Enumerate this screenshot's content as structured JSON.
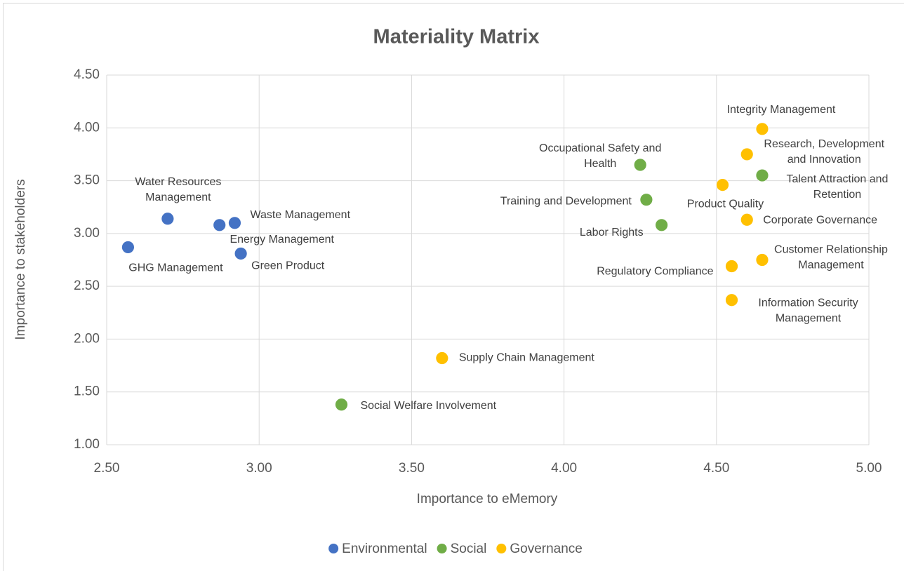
{
  "chart_data": {
    "type": "scatter",
    "title": "Materiality Matrix",
    "x_label": "Importance to eMemory",
    "y_label": "Importance to stakeholders",
    "xlim": [
      2.5,
      5.0
    ],
    "ylim": [
      1.0,
      4.5
    ],
    "xticks": [
      {
        "value": 2.5,
        "label": "2.50"
      },
      {
        "value": 3.0,
        "label": "3.00"
      },
      {
        "value": 3.5,
        "label": "3.50"
      },
      {
        "value": 4.0,
        "label": "4.00"
      },
      {
        "value": 4.5,
        "label": "4.50"
      },
      {
        "value": 5.0,
        "label": "5.00"
      }
    ],
    "yticks": [
      {
        "value": 1.0,
        "label": "1.00"
      },
      {
        "value": 1.5,
        "label": "1.50"
      },
      {
        "value": 2.0,
        "label": "2.00"
      },
      {
        "value": 2.5,
        "label": "2.50"
      },
      {
        "value": 3.0,
        "label": "3.00"
      },
      {
        "value": 3.5,
        "label": "3.50"
      },
      {
        "value": 4.0,
        "label": "4.00"
      },
      {
        "value": 4.5,
        "label": "4.50"
      }
    ],
    "grid": true,
    "legend": "bottom",
    "series": [
      {
        "name": "Environmental",
        "color": "#4472c4",
        "x": [
          2.57,
          2.7,
          2.87,
          2.92,
          2.94
        ],
        "values": [
          2.87,
          3.14,
          3.08,
          3.1,
          2.81
        ],
        "labels": [
          "GHG Management",
          "Water Resources\nManagement",
          "Energy Management",
          "Waste Management",
          "Green Product"
        ]
      },
      {
        "name": "Social",
        "color": "#70ad47",
        "x": [
          4.25,
          4.27,
          4.32,
          4.65,
          3.27
        ],
        "values": [
          3.65,
          3.32,
          3.08,
          3.55,
          1.38
        ],
        "labels": [
          "Occupational Safety and\nHealth",
          "Training and Development",
          "Labor Rights",
          "Talent Attraction and\nRetention",
          "Social Welfare Involvement"
        ]
      },
      {
        "name": "Governance",
        "color": "#ffc000",
        "x": [
          4.65,
          4.6,
          4.52,
          4.6,
          4.65,
          4.55,
          4.55,
          3.6
        ],
        "values": [
          3.99,
          3.75,
          3.46,
          3.13,
          2.75,
          2.69,
          2.37,
          1.82
        ],
        "labels": [
          "Integrity Management",
          "Research, Development\nand Innovation",
          "Product Quality",
          "Corporate Governance",
          "Customer Relationship\nManagement",
          "Regulatory Compliance",
          "Information Security\nManagement",
          "Supply Chain Management"
        ]
      }
    ]
  }
}
